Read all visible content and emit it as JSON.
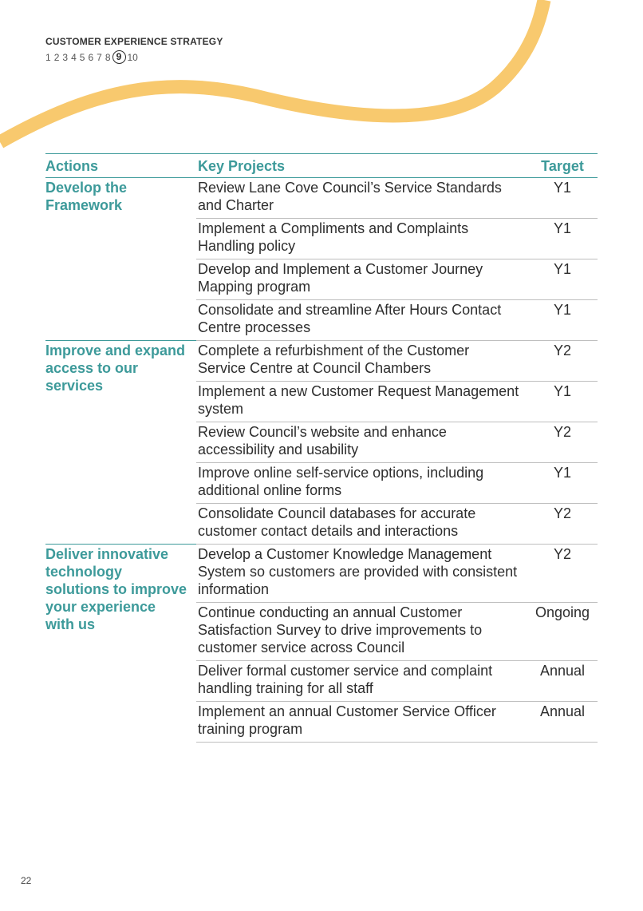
{
  "header": {
    "title": "CUSTOMER EXPERIENCE STRATEGY",
    "pages": [
      "1",
      "2",
      "3",
      "4",
      "5",
      "6",
      "7",
      "8",
      "9",
      "10"
    ],
    "current_page": "9"
  },
  "colors": {
    "accent": "#3d9a9a",
    "swoosh": "#f8c96e"
  },
  "table": {
    "headers": {
      "actions": "Actions",
      "projects": "Key Projects",
      "target": "Target"
    },
    "groups": [
      {
        "action": "Develop the Framework",
        "rows": [
          {
            "project": "Review Lane Cove Council’s Service Standards and Charter",
            "target": "Y1"
          },
          {
            "project": "Implement a Compliments and Complaints Handling policy",
            "target": "Y1"
          },
          {
            "project": "Develop and Implement a Customer Journey Mapping program",
            "target": "Y1"
          },
          {
            "project": "Consolidate and streamline After Hours Contact Centre processes",
            "target": "Y1"
          }
        ]
      },
      {
        "action": "Improve and expand access to our services",
        "rows": [
          {
            "project": "Complete a refurbishment of the Customer Service Centre at Council Chambers",
            "target": "Y2"
          },
          {
            "project": "Implement a new Customer Request Management system",
            "target": "Y1"
          },
          {
            "project": "Review Council’s website and enhance accessibility and usability",
            "target": "Y2"
          },
          {
            "project": "Improve online self-service options, including additional online forms",
            "target": "Y1"
          },
          {
            "project": "Consolidate Council databases for accurate customer contact details and interactions",
            "target": "Y2"
          }
        ]
      },
      {
        "action": "Deliver innovative technology solutions to improve your experience with us",
        "rows": [
          {
            "project": "Develop a Customer Knowledge Management System so customers are provided with consistent information",
            "target": "Y2"
          },
          {
            "project": "Continue conducting an annual Customer Satisfaction Survey to drive improvements to customer service across Council",
            "target": "Ongoing"
          },
          {
            "project": "Deliver formal customer service and complaint handling training for all staff",
            "target": "Annual"
          },
          {
            "project": "Implement an annual Customer Service Officer training program",
            "target": "Annual"
          }
        ]
      }
    ]
  },
  "footer": {
    "page_number": "22"
  }
}
